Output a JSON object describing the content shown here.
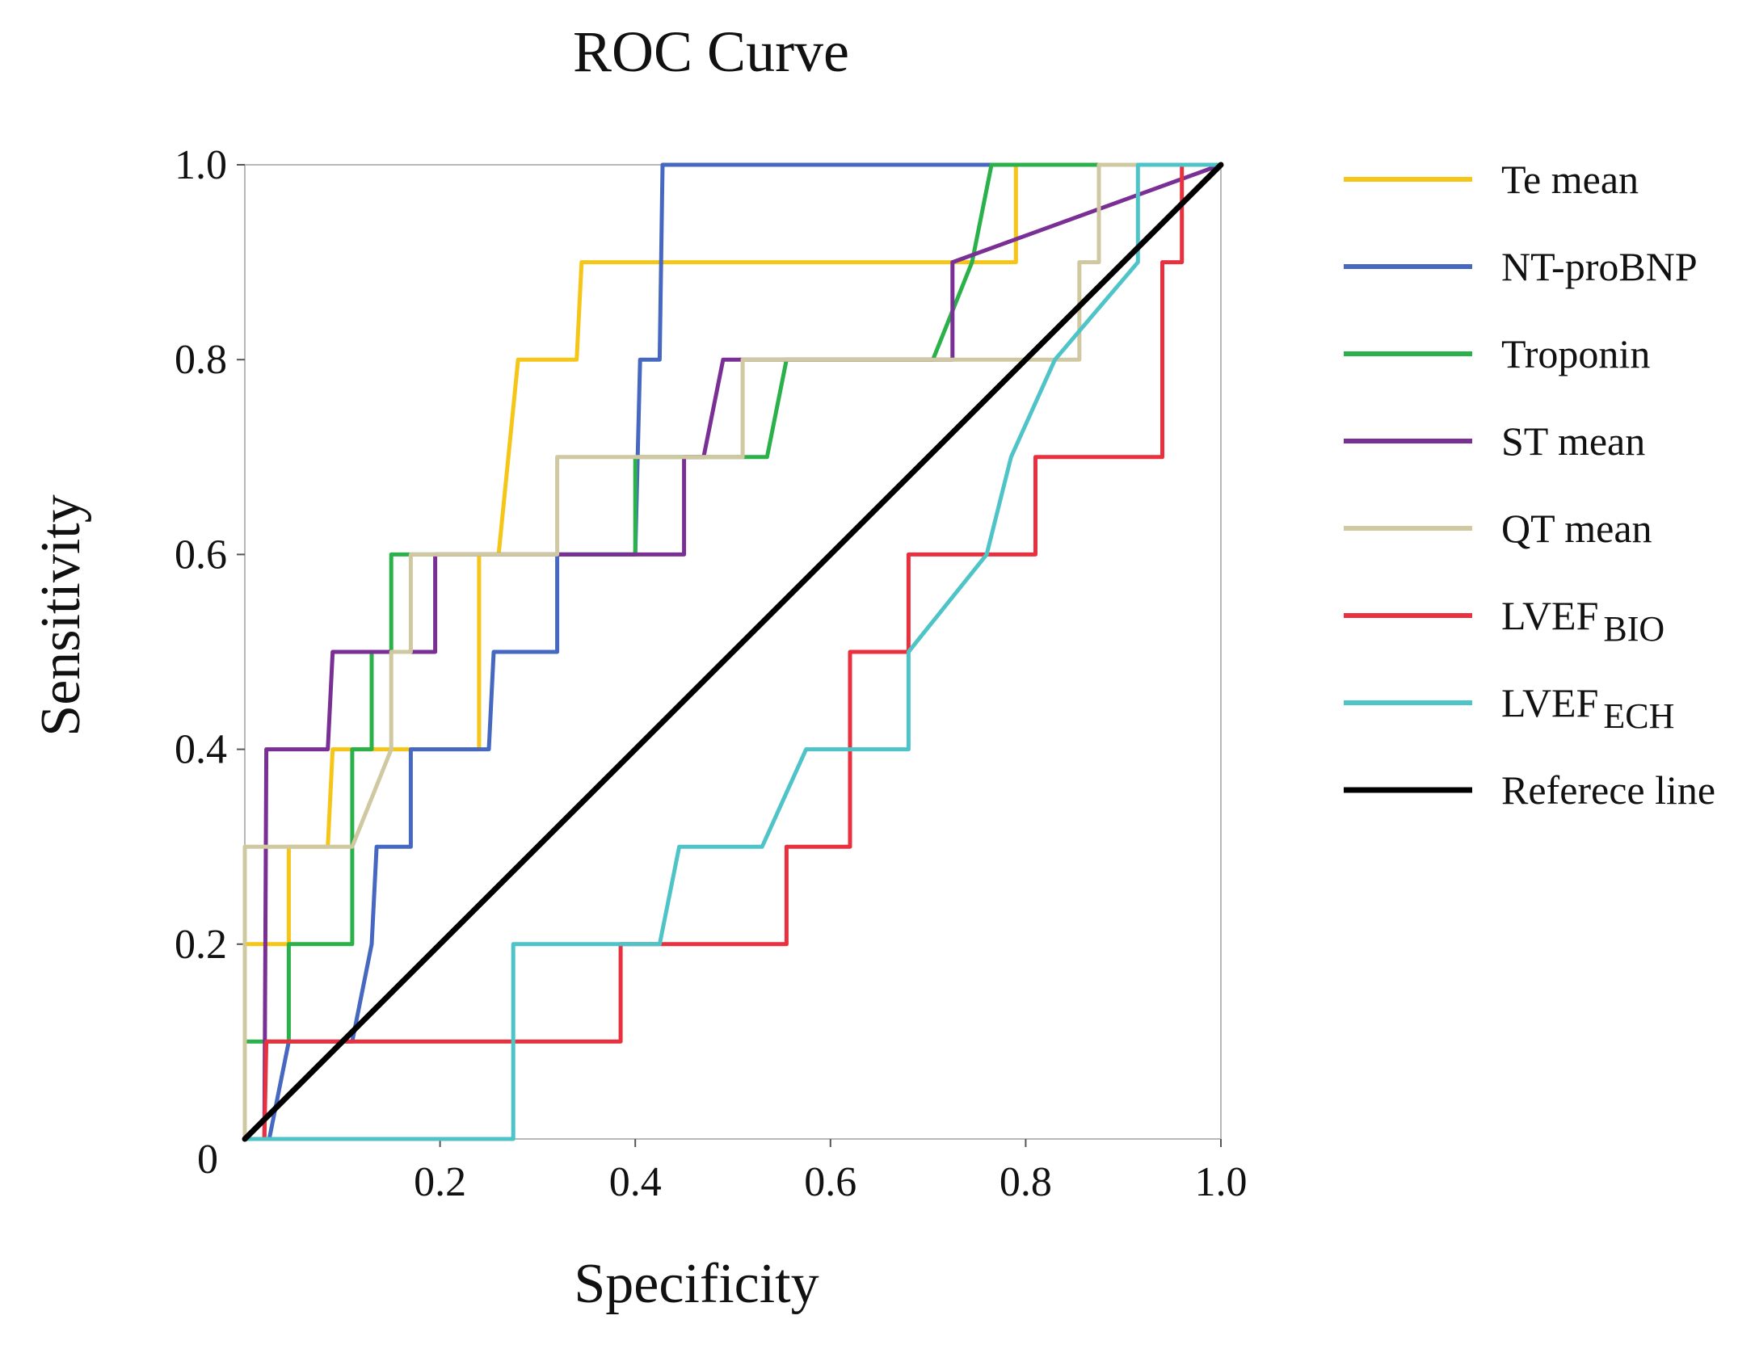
{
  "chart_data": {
    "type": "line",
    "title": "ROC Curve",
    "xlabel": "Specificity",
    "ylabel": "Sensitivity",
    "xlim": [
      0,
      1
    ],
    "ylim": [
      0,
      1
    ],
    "grid": false,
    "legend_position": "right",
    "x_ticks": [
      {
        "value": 0,
        "label": "0"
      },
      {
        "value": 0.2,
        "label": "0.2"
      },
      {
        "value": 0.4,
        "label": "0.4"
      },
      {
        "value": 0.6,
        "label": "0.6"
      },
      {
        "value": 0.8,
        "label": "0.8"
      },
      {
        "value": 1.0,
        "label": "1.0"
      }
    ],
    "y_ticks": [
      {
        "value": 0.2,
        "label": "0.2"
      },
      {
        "value": 0.4,
        "label": "0.4"
      },
      {
        "value": 0.6,
        "label": "0.6"
      },
      {
        "value": 0.8,
        "label": "0.8"
      },
      {
        "value": 1.0,
        "label": "1.0"
      }
    ],
    "series": [
      {
        "name": "Te mean",
        "label_main": "Te mean",
        "label_sub": "",
        "color": "#F5C518",
        "points": [
          [
            0,
            0
          ],
          [
            0,
            0.2
          ],
          [
            0.045,
            0.2
          ],
          [
            0.045,
            0.3
          ],
          [
            0.085,
            0.3
          ],
          [
            0.09,
            0.4
          ],
          [
            0.24,
            0.4
          ],
          [
            0.24,
            0.6
          ],
          [
            0.26,
            0.6
          ],
          [
            0.28,
            0.8
          ],
          [
            0.34,
            0.8
          ],
          [
            0.345,
            0.9
          ],
          [
            0.79,
            0.9
          ],
          [
            0.79,
            1.0
          ],
          [
            1.0,
            1.0
          ]
        ]
      },
      {
        "name": "NT-proBNP",
        "label_main": "NT-proBNP",
        "label_sub": "",
        "color": "#4668C0",
        "points": [
          [
            0.025,
            0
          ],
          [
            0.045,
            0.1
          ],
          [
            0.11,
            0.1
          ],
          [
            0.13,
            0.2
          ],
          [
            0.135,
            0.3
          ],
          [
            0.17,
            0.3
          ],
          [
            0.17,
            0.4
          ],
          [
            0.25,
            0.4
          ],
          [
            0.255,
            0.5
          ],
          [
            0.32,
            0.5
          ],
          [
            0.32,
            0.6
          ],
          [
            0.4,
            0.6
          ],
          [
            0.405,
            0.8
          ],
          [
            0.425,
            0.8
          ],
          [
            0.428,
            1.0
          ],
          [
            1.0,
            1.0
          ]
        ]
      },
      {
        "name": "Troponin",
        "label_main": "Troponin",
        "label_sub": "",
        "color": "#2BB14A",
        "points": [
          [
            0,
            0.1
          ],
          [
            0.045,
            0.1
          ],
          [
            0.045,
            0.2
          ],
          [
            0.11,
            0.2
          ],
          [
            0.11,
            0.4
          ],
          [
            0.13,
            0.4
          ],
          [
            0.13,
            0.5
          ],
          [
            0.15,
            0.5
          ],
          [
            0.15,
            0.6
          ],
          [
            0.4,
            0.6
          ],
          [
            0.4,
            0.7
          ],
          [
            0.535,
            0.7
          ],
          [
            0.555,
            0.8
          ],
          [
            0.705,
            0.8
          ],
          [
            0.745,
            0.9
          ],
          [
            0.765,
            1.0
          ],
          [
            1.0,
            1.0
          ]
        ]
      },
      {
        "name": "ST mean",
        "label_main": "ST mean",
        "label_sub": "",
        "color": "#7A2F95",
        "points": [
          [
            0.02,
            0
          ],
          [
            0.022,
            0.4
          ],
          [
            0.085,
            0.4
          ],
          [
            0.09,
            0.5
          ],
          [
            0.195,
            0.5
          ],
          [
            0.195,
            0.6
          ],
          [
            0.45,
            0.6
          ],
          [
            0.45,
            0.7
          ],
          [
            0.47,
            0.7
          ],
          [
            0.49,
            0.8
          ],
          [
            0.725,
            0.8
          ],
          [
            0.725,
            0.9
          ],
          [
            1.0,
            1.0
          ]
        ]
      },
      {
        "name": "QT mean",
        "label_main": "QT mean",
        "label_sub": "",
        "color": "#CFC8A0",
        "points": [
          [
            0,
            0
          ],
          [
            0,
            0.3
          ],
          [
            0.11,
            0.3
          ],
          [
            0.15,
            0.4
          ],
          [
            0.15,
            0.5
          ],
          [
            0.17,
            0.5
          ],
          [
            0.17,
            0.6
          ],
          [
            0.32,
            0.6
          ],
          [
            0.32,
            0.7
          ],
          [
            0.51,
            0.7
          ],
          [
            0.51,
            0.8
          ],
          [
            0.855,
            0.8
          ],
          [
            0.855,
            0.9
          ],
          [
            0.875,
            0.9
          ],
          [
            0.875,
            1.0
          ],
          [
            1.0,
            1.0
          ]
        ]
      },
      {
        "name": "LVEF BIO",
        "label_main": "LVEF",
        "label_sub": "BIO",
        "color": "#E8303E",
        "points": [
          [
            0.02,
            0
          ],
          [
            0.022,
            0.1
          ],
          [
            0.385,
            0.1
          ],
          [
            0.385,
            0.2
          ],
          [
            0.555,
            0.2
          ],
          [
            0.555,
            0.3
          ],
          [
            0.62,
            0.3
          ],
          [
            0.62,
            0.5
          ],
          [
            0.68,
            0.5
          ],
          [
            0.68,
            0.6
          ],
          [
            0.81,
            0.6
          ],
          [
            0.81,
            0.7
          ],
          [
            0.94,
            0.7
          ],
          [
            0.94,
            0.9
          ],
          [
            0.96,
            0.9
          ],
          [
            0.96,
            1.0
          ],
          [
            1.0,
            1.0
          ]
        ]
      },
      {
        "name": "LVEF ECH",
        "label_main": "LVEF",
        "label_sub": "ECH",
        "color": "#4EC4C8",
        "points": [
          [
            0,
            0
          ],
          [
            0.275,
            0
          ],
          [
            0.275,
            0.2
          ],
          [
            0.425,
            0.2
          ],
          [
            0.445,
            0.3
          ],
          [
            0.53,
            0.3
          ],
          [
            0.575,
            0.4
          ],
          [
            0.68,
            0.4
          ],
          [
            0.68,
            0.5
          ],
          [
            0.76,
            0.6
          ],
          [
            0.785,
            0.7
          ],
          [
            0.83,
            0.8
          ],
          [
            0.915,
            0.9
          ],
          [
            0.915,
            1.0
          ],
          [
            1.0,
            1.0
          ]
        ]
      },
      {
        "name": "Referece line",
        "label_main": "Referece line",
        "label_sub": "",
        "color": "#000000",
        "points": [
          [
            0,
            0
          ],
          [
            1,
            1
          ]
        ]
      }
    ]
  }
}
